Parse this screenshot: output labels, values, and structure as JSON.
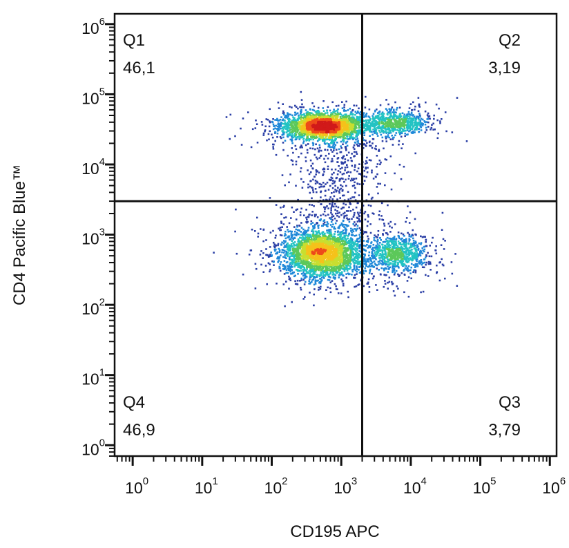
{
  "chart_data": {
    "type": "scatter",
    "subtype": "flow-cytometry-density-dot-plot",
    "xlabel": "CD195 APC",
    "ylabel": "CD4 Pacific Blue™",
    "xscale": "log",
    "yscale": "log",
    "xlim": [
      0.55,
      1250000
    ],
    "ylim": [
      0.7,
      1400000
    ],
    "x_ticks": [
      {
        "base": "10",
        "exp": "0",
        "value": 1
      },
      {
        "base": "10",
        "exp": "1",
        "value": 10
      },
      {
        "base": "10",
        "exp": "2",
        "value": 100
      },
      {
        "base": "10",
        "exp": "3",
        "value": 1000
      },
      {
        "base": "10",
        "exp": "4",
        "value": 10000
      },
      {
        "base": "10",
        "exp": "5",
        "value": 100000
      },
      {
        "base": "10",
        "exp": "6",
        "value": 1000000
      }
    ],
    "y_ticks": [
      {
        "base": "10",
        "exp": "0",
        "value": 1
      },
      {
        "base": "10",
        "exp": "1",
        "value": 10
      },
      {
        "base": "10",
        "exp": "2",
        "value": 100
      },
      {
        "base": "10",
        "exp": "3",
        "value": 1000
      },
      {
        "base": "10",
        "exp": "4",
        "value": 10000
      },
      {
        "base": "10",
        "exp": "5",
        "value": 100000
      },
      {
        "base": "10",
        "exp": "6",
        "value": 1000000
      }
    ],
    "gates": {
      "x": 2000,
      "y": 3000
    },
    "quadrants": [
      {
        "name": "Q1",
        "value": "46,1",
        "position": "top-left"
      },
      {
        "name": "Q2",
        "value": "3,19",
        "position": "top-right"
      },
      {
        "name": "Q3",
        "value": "3,79",
        "position": "bottom-right"
      },
      {
        "name": "Q4",
        "value": "46,9",
        "position": "bottom-left"
      }
    ],
    "populations": [
      {
        "center_x": 550,
        "center_y": 35000,
        "spread_x_log": 0.28,
        "spread_y_log": 0.09
      },
      {
        "center_x": 550,
        "center_y": 550,
        "spread_x_log": 0.28,
        "spread_y_log": 0.16
      },
      {
        "center_x": 6000,
        "center_y": 40000,
        "spread_x_log": 0.25,
        "spread_y_log": 0.09
      },
      {
        "center_x": 6000,
        "center_y": 550,
        "spread_x_log": 0.22,
        "spread_y_log": 0.13
      }
    ],
    "density_colors": [
      "#2b3fa6",
      "#1e88d8",
      "#22c3c3",
      "#5cc85a",
      "#c8de30",
      "#f5c21b",
      "#ee4a1a",
      "#d11a1a"
    ],
    "grid": false
  }
}
